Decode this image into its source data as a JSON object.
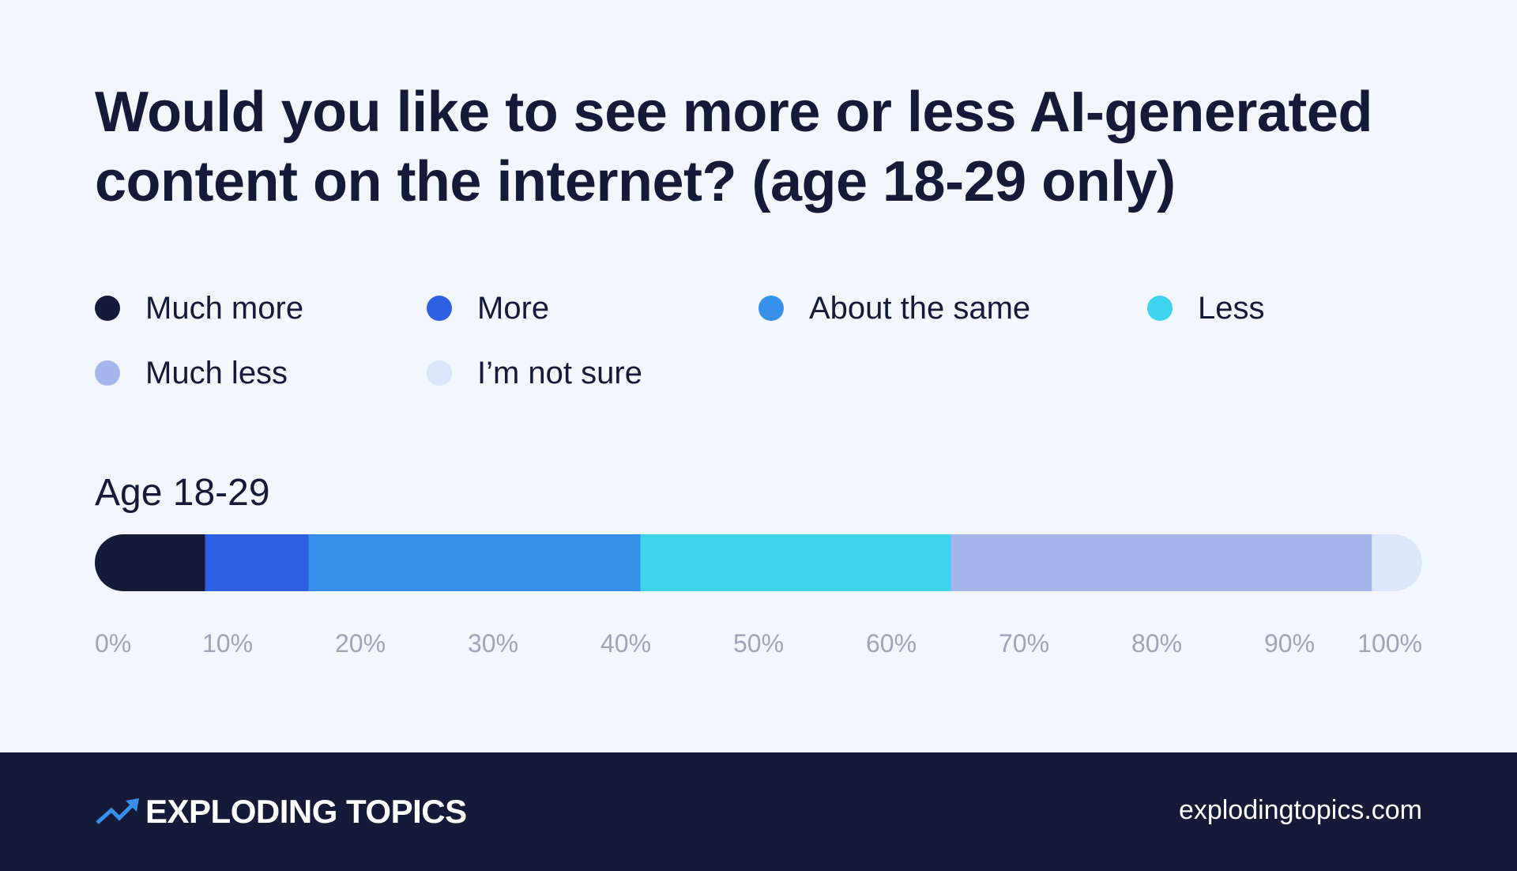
{
  "chart_data": {
    "type": "bar",
    "orientation": "horizontal",
    "stacked": true,
    "title": "Would you like to see more or less AI-generated content on the internet? (age 18-29 only)",
    "categories": [
      "Age 18-29"
    ],
    "series": [
      {
        "name": "Much more",
        "color": "#141a38",
        "values": [
          8.3
        ]
      },
      {
        "name": "More",
        "color": "#2f5fe3",
        "values": [
          7.8
        ]
      },
      {
        "name": "About the same",
        "color": "#3791ea",
        "values": [
          25.0
        ]
      },
      {
        "name": "Less",
        "color": "#3ed3ef",
        "values": [
          23.4
        ]
      },
      {
        "name": "Much less",
        "color": "#a4b5ea",
        "values": [
          31.7
        ]
      },
      {
        "name": "I’m not sure",
        "color": "#dbe6fa",
        "values": [
          3.8
        ]
      }
    ],
    "x_ticks": [
      "0%",
      "10%",
      "20%",
      "30%",
      "40%",
      "50%",
      "60%",
      "70%",
      "80%",
      "90%",
      "100%"
    ],
    "xlim": [
      0,
      100
    ],
    "legend_position": "top",
    "grid": false
  },
  "footer": {
    "brand": "EXPLODING TOPICS",
    "brand_icon": "trend-arrow-icon",
    "url": "explodingtopics.com"
  }
}
